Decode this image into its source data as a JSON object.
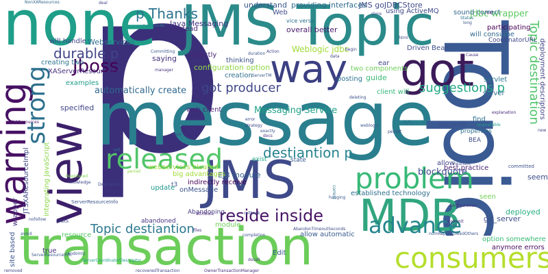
{
  "words": [
    {
      "text": "p",
      "color": "#3b2f7a"
    },
    {
      "text": "message",
      "color": "#2a7f8e"
    },
    {
      "text": "Topic",
      "color": "#3a5a93"
    },
    {
      "text": "JMS Topic",
      "color": "#2b8a8a"
    },
    {
      "text": "transaction",
      "color": "#6ccd5a"
    },
    {
      "text": "JMS",
      "color": "#3f4a8a"
    },
    {
      "text": "none",
      "color": "#1f9e89"
    },
    {
      "text": "got",
      "color": "#3b1a5a"
    },
    {
      "text": "way",
      "color": "#3b3f82"
    },
    {
      "text": "warning",
      "color": "#471164"
    },
    {
      "text": "MDB",
      "color": "#31a57f"
    },
    {
      "text": "view",
      "color": "#3c1f6a"
    },
    {
      "text": "consumers",
      "color": "#b5de2b"
    },
    {
      "text": "problem",
      "color": "#38b977"
    },
    {
      "text": "released",
      "color": "#52c569"
    },
    {
      "text": "strong",
      "color": "#2d708e"
    },
    {
      "text": "advance",
      "color": "#25858e"
    },
    {
      "text": "reside inside",
      "color": "#471365"
    },
    {
      "text": "Topic destiantion",
      "color": "#2a788e"
    },
    {
      "text": "Topic destination",
      "color": "#50c46a"
    },
    {
      "text": "destiantion p",
      "color": "#26828e"
    },
    {
      "text": "got producer",
      "color": "#404688"
    },
    {
      "text": "suggestions p",
      "color": "#22a785"
    },
    {
      "text": "durable p",
      "color": "#414487"
    },
    {
      "text": "Jboss",
      "color": "#440154"
    },
    {
      "text": "p Thanks",
      "color": "#2c728e"
    },
    {
      "text": "JMS goJDBCStore",
      "color": "#3e4a89"
    },
    {
      "text": "Weblogic jdbc",
      "color": "#a0da39"
    },
    {
      "text": "automatically create",
      "color": "#31688e"
    },
    {
      "text": "Messaging Service",
      "color": "#1fa187"
    },
    {
      "text": "blockquote",
      "color": "#3e4989"
    },
    {
      "text": "EJB module",
      "color": "#355f8d"
    },
    {
      "text": "Java Messaging",
      "color": "#46327e"
    },
    {
      "text": "providing interfaces",
      "color": "#2f6c8e"
    },
    {
      "text": "understand",
      "color": "#39568c"
    },
    {
      "text": "overall better",
      "color": "#481b6d"
    },
    {
      "text": "Driven Bean",
      "color": "#3d4e8a"
    },
    {
      "text": "two components",
      "color": "#6ece58"
    },
    {
      "text": "configuration option",
      "color": "#8fd744"
    },
    {
      "text": "Webservices",
      "color": "#2e6f8e"
    },
    {
      "text": "will handle",
      "color": "#414487"
    },
    {
      "text": "creating two",
      "color": "#2c738e"
    },
    {
      "text": "XAServerResourceInfo",
      "color": "#46307e"
    },
    {
      "text": "examples",
      "color": "#1e9b8a"
    },
    {
      "text": "specified",
      "color": "#404588"
    },
    {
      "text": "saying",
      "color": "#46337e"
    },
    {
      "text": "directly",
      "color": "#482374"
    },
    {
      "text": "thinking",
      "color": "#3b528b"
    },
    {
      "text": "creation",
      "color": "#2e6e8e"
    },
    {
      "text": "instead",
      "color": "#482677"
    },
    {
      "text": "servlet",
      "color": "#2b748e"
    },
    {
      "text": "client will",
      "color": "#35b779"
    },
    {
      "text": "jdbc wrapper",
      "color": "#5ec962"
    },
    {
      "text": "will consume",
      "color": "#31688e"
    },
    {
      "text": "using ActiveMQ",
      "color": "#3e4989"
    },
    {
      "text": "sound correct",
      "color": "#31678e"
    },
    {
      "text": "participating",
      "color": "#440154"
    },
    {
      "text": "CoordinatorURL",
      "color": "#3f4788"
    },
    {
      "text": "deployment descriptors",
      "color": "#414487"
    },
    {
      "text": "web client",
      "color": "#482576"
    },
    {
      "text": "webservices bloated",
      "color": "#9bd93c"
    },
    {
      "text": "big advantages",
      "color": "#a2da37"
    },
    {
      "text": "indirectly receive",
      "color": "#440154"
    },
    {
      "text": "onMessage",
      "color": "#3b518b"
    },
    {
      "text": "Abandoning",
      "color": "#453781"
    },
    {
      "text": "established technology",
      "color": "#2e6f8e"
    },
    {
      "text": "best practice",
      "color": "#482475"
    },
    {
      "text": "seconds",
      "color": "#3e4c8a"
    },
    {
      "text": "find",
      "color": "#2d718e"
    },
    {
      "text": "allow",
      "color": "#414287"
    },
    {
      "text": "allow automatic",
      "color": "#38598c"
    },
    {
      "text": "update",
      "color": "#1f9a8a"
    },
    {
      "text": "abandoned",
      "color": "#46327e"
    },
    {
      "text": "deployed",
      "color": "#26ad81"
    },
    {
      "text": "go_server",
      "color": "#3c4f8a"
    },
    {
      "text": "option somewhere",
      "color": "#3bbb75"
    },
    {
      "text": "anymore errors",
      "color": "#460b5e"
    },
    {
      "text": "seem",
      "color": "#3c4f8a"
    },
    {
      "text": "JTSXAResourceImpl",
      "color": "#3f4889"
    },
    {
      "text": "integrating JavaScript",
      "color": "#8bd646"
    },
    {
      "text": "site based",
      "color": "#3a548c"
    },
    {
      "text": "wrapper",
      "color": "#472d7b"
    },
    {
      "text": "resource",
      "color": "#56c667"
    },
    {
      "text": "true",
      "color": "#46337f"
    },
    {
      "text": "Edit",
      "color": "#38588c"
    },
    {
      "text": "ServerResourceInfo",
      "color": "#3a538b"
    },
    {
      "text": "module",
      "color": "#6ece58"
    },
    {
      "text": "posting",
      "color": "#2d718e"
    },
    {
      "text": "guide",
      "color": "#3aba76"
    },
    {
      "text": "server",
      "color": "#2f6b8e"
    },
    {
      "text": "seen",
      "color": "#73d056"
    },
    {
      "text": "ear",
      "color": "#404688"
    },
    {
      "text": "BEA",
      "color": "#3e4a89"
    },
    {
      "text": "t3",
      "color": "#3a548c"
    },
    {
      "text": "state",
      "color": "#38598c"
    },
    {
      "text": "exist",
      "color": "#22a884"
    },
    {
      "text": "properties",
      "color": "#2d708e"
    },
    {
      "text": "committed",
      "color": "#3b528b"
    },
    {
      "text": "NonXAResources",
      "color": "#31688e"
    },
    {
      "text": "deal",
      "color": "#404588"
    },
    {
      "text": "Committing",
      "color": "#39568c"
    },
    {
      "text": "manager",
      "color": "#46327e"
    },
    {
      "text": "error",
      "color": "#3e4989"
    },
    {
      "text": "strategy",
      "color": "#404688"
    },
    {
      "text": "exactly",
      "color": "#3b528b"
    },
    {
      "text": "docs",
      "color": "#472c7a"
    },
    {
      "text": "right",
      "color": "#2e6f8e"
    },
    {
      "text": "persist",
      "color": "#3d4e8a"
    },
    {
      "text": "heuristic",
      "color": "#3e4c8a"
    },
    {
      "text": "explanation",
      "color": "#482677"
    },
    {
      "text": "unavailable",
      "color": "#1f9e89"
    },
    {
      "text": "Cause",
      "color": "#46327e"
    },
    {
      "text": "long",
      "color": "#3b528b"
    },
    {
      "text": "Status",
      "color": "#2c728e"
    },
    {
      "text": "deleting",
      "color": "#3b528b"
    },
    {
      "text": "begin",
      "color": "#414487"
    },
    {
      "text": "data",
      "color": "#404688"
    },
    {
      "text": "Description",
      "color": "#3f4788"
    },
    {
      "text": "configuration",
      "color": "#46337e"
    },
    {
      "text": "hanging",
      "color": "#3b528b"
    },
    {
      "text": "correct",
      "color": "#2c738e"
    },
    {
      "text": "drive",
      "color": "#3b528b"
    },
    {
      "text": "commit",
      "color": "#482374"
    },
    {
      "text": "nofollow",
      "color": "#3c508b"
    },
    {
      "text": "Check",
      "color": "#3f4889"
    },
    {
      "text": "avoid",
      "color": "#39568c"
    },
    {
      "text": "randomly",
      "color": "#3a548c"
    },
    {
      "text": "files",
      "color": "#46327e"
    },
    {
      "text": "completion",
      "color": "#3b518b"
    },
    {
      "text": "rollback",
      "color": "#3e4989"
    },
    {
      "text": "attribute",
      "color": "#482576"
    },
    {
      "text": "Registered",
      "color": "#7ad151"
    },
    {
      "text": "knowledge",
      "color": "#3f4788"
    },
    {
      "text": "period",
      "color": "#8fd744"
    },
    {
      "text": "left",
      "color": "#2d708e"
    },
    {
      "text": "use",
      "color": "#3d4d8a"
    },
    {
      "text": "weblogic",
      "color": "#3a548c"
    },
    {
      "text": "XAResources",
      "color": "#481b6d"
    },
    {
      "text": "html",
      "color": "#3f4889"
    },
    {
      "text": "new",
      "color": "#404588"
    },
    {
      "text": "ServerCoordinatorDescriptor",
      "color": "#1f9e89"
    },
    {
      "text": "recoveredTransaction",
      "color": "#414487"
    },
    {
      "text": "OwnerTransactionManager",
      "color": "#472d7b"
    },
    {
      "text": "AbandonTimeoutSeconds",
      "color": "#3e4989"
    },
    {
      "text": "numRepliesOwedOthers",
      "color": "#3b528b"
    },
    {
      "text": "numRepliesOwedMe",
      "color": "#26828e"
    },
    {
      "text": "ServerTM",
      "color": "#38598c"
    },
    {
      "text": "Action",
      "color": "#3f4889"
    },
    {
      "text": "duration",
      "color": "#3b528b"
    },
    {
      "text": "docs0",
      "color": "#46337e"
    },
    {
      "text": "ear",
      "color": "#482677"
    },
    {
      "text": "store",
      "color": "#3c4f8a"
    },
    {
      "text": "removed",
      "color": "#414487"
    },
    {
      "text": "ServerResourceInfo",
      "color": "#38598c"
    },
    {
      "text": "Web",
      "color": "#3e4c8a"
    },
    {
      "text": "vice versa",
      "color": "#2c728e"
    },
    {
      "text": "go",
      "color": "#1f9a8a"
    },
    {
      "text": "JMS",
      "color": "#3a548c"
    }
  ]
}
